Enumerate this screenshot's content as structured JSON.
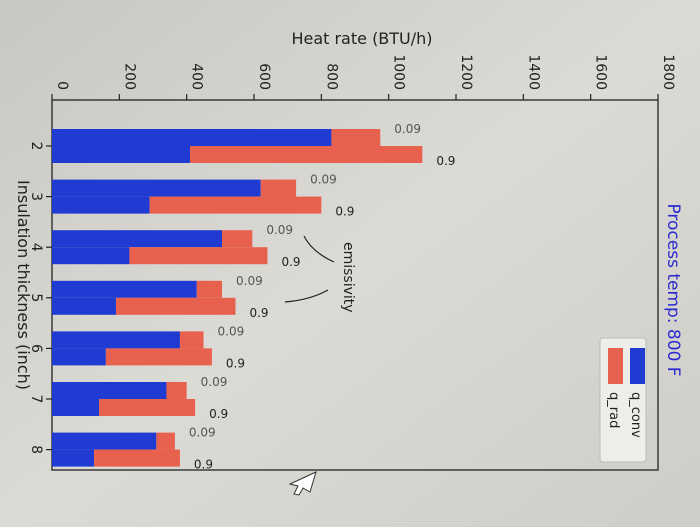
{
  "chart_data": {
    "type": "bar",
    "orientation": "rotated-90",
    "title": "Process temp: 800 F",
    "xlabel": "Insulation thickness (inch)",
    "ylabel": "Heat rate (BTU/h)",
    "ylim": [
      0,
      1800
    ],
    "yticks": [
      "0",
      "200",
      "400",
      "600",
      "800",
      "1000",
      "1200",
      "1400",
      "1600",
      "1800"
    ],
    "categories": [
      "2",
      "3",
      "4",
      "5",
      "6",
      "7",
      "8"
    ],
    "stacked": true,
    "groups": [
      {
        "emissivity": "0.09",
        "q_conv": [
          830,
          620,
          505,
          430,
          380,
          340,
          310
        ],
        "q_rad": [
          145,
          105,
          90,
          75,
          70,
          60,
          55
        ]
      },
      {
        "emissivity": "0.9",
        "q_conv": [
          410,
          290,
          230,
          190,
          160,
          140,
          125
        ],
        "q_rad": [
          690,
          510,
          410,
          355,
          315,
          285,
          255
        ]
      }
    ],
    "legend": [
      {
        "name": "q_conv",
        "color": "#1f3bd1"
      },
      {
        "name": "q_rad",
        "color": "#e8604e"
      }
    ],
    "legend_position": "top-right",
    "annotation": "emissivity",
    "colors": {
      "q_conv": "#1f3bd1",
      "q_rad": "#e8604e",
      "title": "#2a2ad0"
    }
  }
}
